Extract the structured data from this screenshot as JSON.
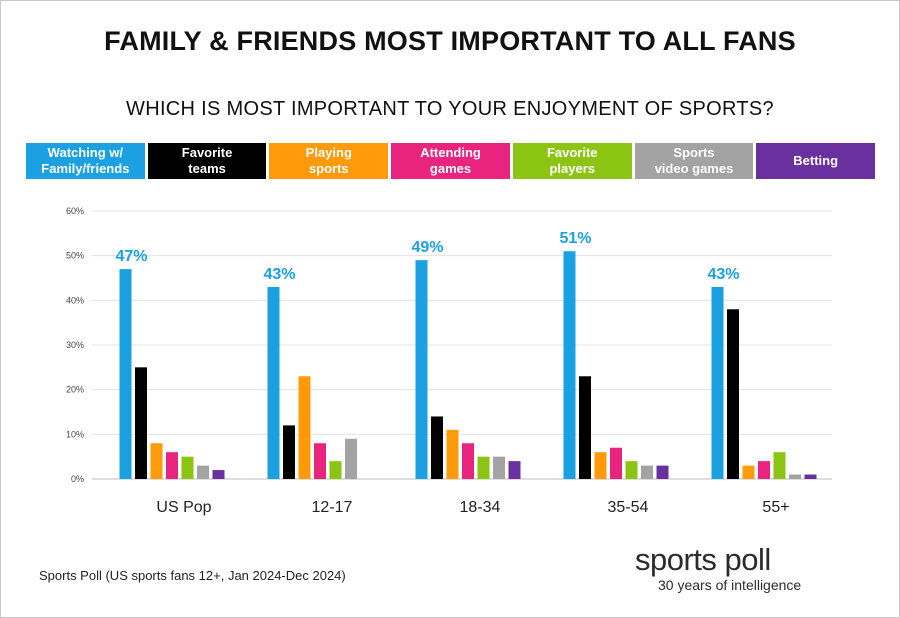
{
  "title": "FAMILY & FRIENDS MOST IMPORTANT TO ALL FANS",
  "subtitle": "WHICH IS MOST IMPORTANT TO YOUR ENJOYMENT OF SPORTS?",
  "source": "Sports Poll (US sports fans 12+, Jan 2024-Dec 2024)",
  "logo": {
    "main": "sports poll",
    "tagline": "30 years of intelligence"
  },
  "chart_data": {
    "type": "bar",
    "categories": [
      "US Pop",
      "12-17",
      "18-34",
      "35-54",
      "55+"
    ],
    "ylim": [
      0,
      60
    ],
    "yticks": [
      "0%",
      "10%",
      "20%",
      "30%",
      "40%",
      "50%",
      "60%"
    ],
    "grid": true,
    "legend_placement": "top",
    "series": [
      {
        "name": "Watching w/\nFamily/friends",
        "color": "#1ba1e2",
        "values": [
          47,
          43,
          49,
          51,
          43
        ],
        "labels": [
          "47%",
          "43%",
          "49%",
          "51%",
          "43%"
        ]
      },
      {
        "name": "Favorite\nteams",
        "color": "#000000",
        "values": [
          25,
          12,
          14,
          23,
          38
        ]
      },
      {
        "name": "Playing\nsports",
        "color": "#ff9a0a",
        "values": [
          8,
          23,
          11,
          6,
          3
        ]
      },
      {
        "name": "Attending\ngames",
        "color": "#e8247e",
        "values": [
          6,
          8,
          8,
          7,
          4
        ]
      },
      {
        "name": "Favorite\nplayers",
        "color": "#8cc413",
        "values": [
          5,
          4,
          5,
          4,
          6
        ]
      },
      {
        "name": "Sports\nvideo games",
        "color": "#a3a3a3",
        "values": [
          3,
          9,
          5,
          3,
          1
        ]
      },
      {
        "name": "Betting",
        "color": "#6b30a0",
        "values": [
          2,
          0,
          4,
          3,
          1
        ]
      }
    ]
  }
}
